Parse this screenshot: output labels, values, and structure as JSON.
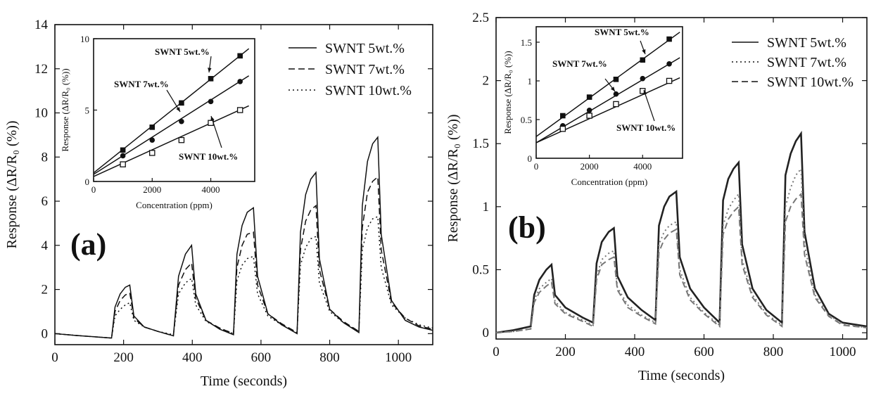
{
  "chart_data": [
    {
      "panel_label": "(a)",
      "type": "line",
      "xlabel": "Time (seconds)",
      "ylabel": "Response (ΔR/R₀ (%))",
      "xlim": [
        0,
        1100
      ],
      "ylim": [
        -0.5,
        14
      ],
      "xticks": [
        0,
        200,
        400,
        600,
        800,
        1000
      ],
      "yticks": [
        0,
        2,
        4,
        6,
        8,
        10,
        12,
        14
      ],
      "grid": false,
      "legend_position": "top-right",
      "series": [
        {
          "name": "SWNT 5wt.%",
          "dash": "solid",
          "x": [
            0,
            60,
            120,
            165,
            175,
            190,
            205,
            218,
            230,
            260,
            300,
            345,
            360,
            380,
            398,
            410,
            440,
            480,
            520,
            530,
            545,
            560,
            578,
            590,
            620,
            660,
            705,
            715,
            730,
            745,
            760,
            770,
            800,
            840,
            885,
            895,
            910,
            925,
            940,
            950,
            980,
            1020,
            1060,
            1100
          ],
          "y": [
            0,
            -0.08,
            -0.15,
            -0.2,
            1.2,
            1.8,
            2.1,
            2.2,
            0.8,
            0.3,
            0.1,
            -0.1,
            2.6,
            3.6,
            4.0,
            1.8,
            0.6,
            0.2,
            -0.05,
            3.6,
            4.9,
            5.5,
            5.7,
            2.6,
            0.9,
            0.4,
            0.0,
            4.6,
            6.3,
            7.0,
            7.3,
            3.4,
            1.1,
            0.5,
            0.05,
            5.8,
            7.8,
            8.6,
            8.9,
            4.5,
            1.5,
            0.6,
            0.3,
            0.15
          ]
        },
        {
          "name": "SWNT 7wt.%",
          "dash": "dashed",
          "x": [
            0,
            60,
            120,
            165,
            175,
            190,
            205,
            218,
            230,
            260,
            300,
            345,
            360,
            380,
            398,
            410,
            440,
            480,
            520,
            530,
            545,
            560,
            578,
            590,
            620,
            660,
            705,
            715,
            730,
            745,
            760,
            770,
            800,
            840,
            885,
            895,
            910,
            925,
            940,
            950,
            980,
            1020,
            1060,
            1100
          ],
          "y": [
            0,
            -0.08,
            -0.15,
            -0.2,
            1.0,
            1.5,
            1.75,
            1.85,
            0.7,
            0.3,
            0.1,
            -0.1,
            2.2,
            2.9,
            3.2,
            1.6,
            0.6,
            0.25,
            0.0,
            3.0,
            4.0,
            4.5,
            4.6,
            2.2,
            0.9,
            0.45,
            0.05,
            3.8,
            5.1,
            5.6,
            5.8,
            2.9,
            1.1,
            0.55,
            0.1,
            4.8,
            6.4,
            6.9,
            7.1,
            3.8,
            1.4,
            0.7,
            0.35,
            0.2
          ]
        },
        {
          "name": "SWNT 10wt.%",
          "dash": "dotted",
          "x": [
            0,
            60,
            120,
            165,
            175,
            190,
            205,
            218,
            230,
            260,
            300,
            345,
            360,
            380,
            398,
            410,
            440,
            480,
            520,
            530,
            545,
            560,
            578,
            590,
            620,
            660,
            705,
            715,
            730,
            745,
            760,
            770,
            800,
            840,
            885,
            895,
            910,
            925,
            940,
            950,
            980,
            1020,
            1060,
            1100
          ],
          "y": [
            0,
            -0.08,
            -0.15,
            -0.2,
            0.8,
            1.1,
            1.3,
            1.4,
            0.6,
            0.3,
            0.1,
            -0.05,
            1.8,
            2.3,
            2.5,
            1.3,
            0.55,
            0.25,
            0.0,
            2.4,
            3.1,
            3.4,
            3.5,
            1.8,
            0.8,
            0.4,
            0.05,
            3.1,
            3.9,
            4.3,
            4.4,
            2.3,
            1.0,
            0.5,
            0.1,
            3.8,
            4.8,
            5.2,
            5.3,
            3.0,
            1.3,
            0.7,
            0.4,
            0.25
          ]
        }
      ],
      "inset": {
        "type": "scatter",
        "xlabel": "Concentration (ppm)",
        "ylabel": "Response (ΔR/R₀ (%))",
        "xlim": [
          0,
          5500
        ],
        "ylim": [
          0,
          10
        ],
        "xticks": [
          0,
          2000,
          4000
        ],
        "yticks": [
          0,
          5,
          10
        ],
        "series": [
          {
            "name": "SWNT 5wt.%",
            "marker": "filled-square",
            "x": [
              1000,
              2000,
              3000,
              4000,
              5000
            ],
            "y": [
              2.2,
              3.8,
              5.5,
              7.2,
              8.8
            ],
            "fit": [
              [
                0,
                0.6
              ],
              [
                5300,
                9.3
              ]
            ]
          },
          {
            "name": "SWNT 7wt.%",
            "marker": "filled-circle",
            "x": [
              1000,
              2000,
              3000,
              4000,
              5000
            ],
            "y": [
              1.8,
              2.9,
              4.2,
              5.6,
              7.0
            ],
            "fit": [
              [
                0,
                0.5
              ],
              [
                5300,
                7.4
              ]
            ]
          },
          {
            "name": "SWNT 10wt.%",
            "marker": "open-square",
            "x": [
              1000,
              2000,
              3000,
              4000,
              5000
            ],
            "y": [
              1.2,
              2.0,
              2.9,
              4.1,
              5.0
            ],
            "fit": [
              [
                0,
                0.35
              ],
              [
                5300,
                5.3
              ]
            ]
          }
        ],
        "annotations": [
          "SWNT 5wt.%",
          "SWNT 7wt.%",
          "SWNT 10wt.%"
        ]
      }
    },
    {
      "panel_label": "(b)",
      "type": "line",
      "xlabel": "Time (seconds)",
      "ylabel": "Response (ΔR/R₀ (%))",
      "xlim": [
        0,
        1070
      ],
      "ylim": [
        -0.05,
        2.5
      ],
      "xticks": [
        0,
        200,
        400,
        600,
        800,
        1000
      ],
      "yticks": [
        0,
        0.5,
        1,
        1.5,
        2,
        2.5
      ],
      "grid": false,
      "legend_position": "top-right",
      "series": [
        {
          "name": "SWNT 5wt.%",
          "dash": "solid",
          "x": [
            0,
            50,
            100,
            110,
            125,
            145,
            160,
            170,
            200,
            250,
            280,
            290,
            305,
            325,
            340,
            350,
            380,
            420,
            460,
            470,
            485,
            500,
            520,
            530,
            560,
            600,
            645,
            655,
            670,
            685,
            700,
            710,
            740,
            780,
            825,
            835,
            850,
            865,
            880,
            890,
            920,
            960,
            1000,
            1070
          ],
          "y": [
            0,
            0.02,
            0.05,
            0.3,
            0.42,
            0.5,
            0.54,
            0.3,
            0.2,
            0.12,
            0.08,
            0.55,
            0.72,
            0.8,
            0.83,
            0.45,
            0.28,
            0.18,
            0.1,
            0.85,
            1.0,
            1.08,
            1.12,
            0.6,
            0.35,
            0.2,
            0.08,
            1.05,
            1.22,
            1.3,
            1.35,
            0.7,
            0.35,
            0.18,
            0.08,
            1.25,
            1.42,
            1.52,
            1.58,
            0.8,
            0.35,
            0.15,
            0.08,
            0.05
          ]
        },
        {
          "name": "SWNT 7wt.%",
          "dash": "dotted",
          "x": [
            0,
            50,
            100,
            110,
            125,
            145,
            160,
            170,
            200,
            250,
            280,
            290,
            305,
            325,
            340,
            350,
            380,
            420,
            460,
            470,
            485,
            500,
            520,
            530,
            560,
            600,
            645,
            655,
            670,
            685,
            700,
            710,
            740,
            780,
            825,
            835,
            850,
            865,
            880,
            890,
            920,
            960,
            1000,
            1070
          ],
          "y": [
            0,
            0.01,
            0.03,
            0.26,
            0.35,
            0.4,
            0.43,
            0.25,
            0.16,
            0.1,
            0.06,
            0.45,
            0.58,
            0.63,
            0.65,
            0.36,
            0.22,
            0.14,
            0.08,
            0.7,
            0.8,
            0.85,
            0.88,
            0.5,
            0.28,
            0.16,
            0.06,
            0.85,
            0.98,
            1.05,
            1.1,
            0.58,
            0.3,
            0.15,
            0.06,
            1.0,
            1.15,
            1.25,
            1.3,
            0.7,
            0.3,
            0.14,
            0.07,
            0.04
          ]
        },
        {
          "name": "SWNT 10wt.%",
          "dash": "dashed",
          "x": [
            0,
            50,
            100,
            110,
            125,
            145,
            160,
            170,
            200,
            250,
            280,
            290,
            305,
            325,
            340,
            350,
            380,
            420,
            460,
            470,
            485,
            500,
            520,
            530,
            560,
            600,
            645,
            655,
            670,
            685,
            700,
            710,
            740,
            780,
            825,
            835,
            850,
            865,
            880,
            890,
            920,
            960,
            1000,
            1070
          ],
          "y": [
            0,
            0.01,
            0.03,
            0.24,
            0.32,
            0.37,
            0.4,
            0.23,
            0.15,
            0.09,
            0.05,
            0.42,
            0.54,
            0.58,
            0.6,
            0.34,
            0.2,
            0.13,
            0.07,
            0.64,
            0.74,
            0.79,
            0.82,
            0.46,
            0.26,
            0.15,
            0.05,
            0.78,
            0.9,
            0.96,
            1.0,
            0.54,
            0.28,
            0.14,
            0.05,
            0.88,
            1.0,
            1.06,
            1.1,
            0.62,
            0.28,
            0.13,
            0.06,
            0.04
          ]
        }
      ],
      "inset": {
        "type": "scatter",
        "xlabel": "Concentration (ppm)",
        "ylabel": "Response (ΔR/R₀ (%))",
        "xlim": [
          0,
          5500
        ],
        "ylim": [
          0,
          1.7
        ],
        "xticks": [
          0,
          2000,
          4000
        ],
        "yticks": [
          0,
          0.5,
          1,
          1.5
        ],
        "series": [
          {
            "name": "SWNT 5wt.%",
            "marker": "filled-square",
            "x": [
              1000,
              2000,
              3000,
              4000,
              5000
            ],
            "y": [
              0.55,
              0.79,
              1.02,
              1.27,
              1.54
            ],
            "fit": [
              [
                0,
                0.28
              ],
              [
                5400,
                1.63
              ]
            ]
          },
          {
            "name": "SWNT 7wt.%",
            "marker": "filled-circle",
            "x": [
              1000,
              2000,
              3000,
              4000,
              5000
            ],
            "y": [
              0.42,
              0.62,
              0.83,
              1.03,
              1.22
            ],
            "fit": [
              [
                0,
                0.2
              ],
              [
                5400,
                1.3
              ]
            ]
          },
          {
            "name": "SWNT 10wt.%",
            "marker": "open-square",
            "x": [
              1000,
              2000,
              3000,
              4000,
              5000
            ],
            "y": [
              0.38,
              0.55,
              0.7,
              0.87,
              1.0
            ],
            "fit": [
              [
                0,
                0.2
              ],
              [
                5400,
                1.04
              ]
            ]
          }
        ],
        "annotations": [
          "SWNT 5wt.%",
          "SWNT 7wt.%",
          "SWNT 10wt.%"
        ]
      }
    }
  ]
}
